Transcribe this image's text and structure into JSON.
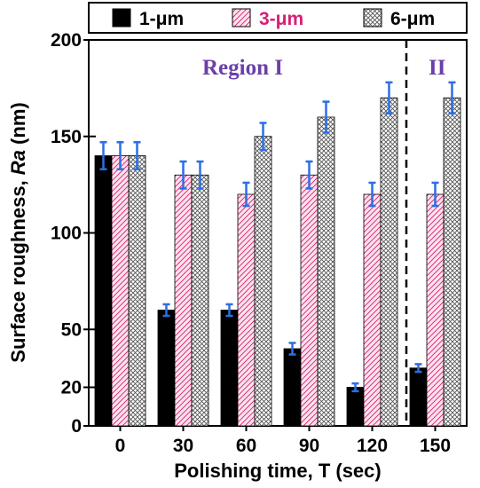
{
  "chart_data": {
    "type": "bar",
    "categories": [
      "0",
      "30",
      "60",
      "90",
      "120",
      "150"
    ],
    "series": [
      {
        "name": "1-μm",
        "values": [
          140,
          60,
          60,
          40,
          20,
          30
        ],
        "errors": [
          7,
          3,
          3,
          3,
          2,
          2
        ],
        "color": "#000000",
        "pattern": "solid"
      },
      {
        "name": "3-μm",
        "values": [
          140,
          130,
          120,
          130,
          120,
          120
        ],
        "errors": [
          7,
          7,
          6,
          7,
          6,
          6
        ],
        "color": "#d81e76",
        "pattern": "hatch"
      },
      {
        "name": "6-μm",
        "values": [
          140,
          130,
          150,
          160,
          170,
          170
        ],
        "errors": [
          7,
          7,
          7,
          8,
          8,
          8
        ],
        "color": "#000000",
        "pattern": "crosshatch"
      }
    ],
    "xlabel": "Polishing time, T (sec)",
    "ylabel_prefix": "Surface roughness, ",
    "ylabel_italic": "Ra",
    "ylabel_suffix": " (nm)",
    "yticks": [
      "0",
      "20",
      "50",
      "100",
      "150",
      "200"
    ],
    "ylim": [
      0,
      200
    ],
    "errorbar_color": "#2a6fe6",
    "annotations": [
      {
        "text": "Region I",
        "color": "#6b3fa8"
      },
      {
        "text": "II",
        "color": "#6b3fa8"
      }
    ],
    "divider_style": "dashed",
    "legend_position": "top"
  }
}
